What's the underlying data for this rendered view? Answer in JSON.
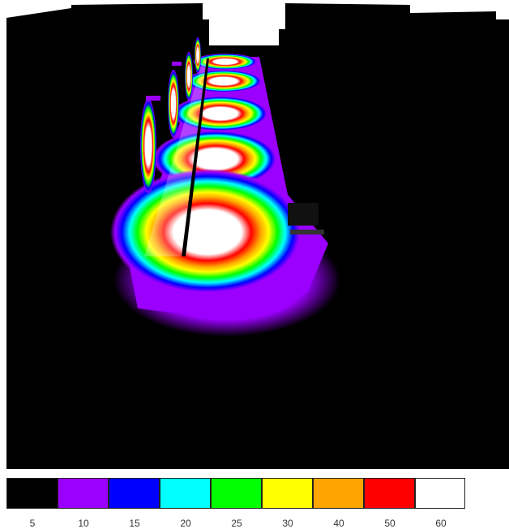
{
  "legend": {
    "colors": [
      "#000000",
      "#9b00ff",
      "#0000ff",
      "#00ffff",
      "#00ff00",
      "#ffff00",
      "#ffa500",
      "#ff0000",
      "#ffffff"
    ],
    "labels": [
      "5",
      "10",
      "15",
      "20",
      "25",
      "30",
      "40",
      "50",
      "60"
    ]
  }
}
